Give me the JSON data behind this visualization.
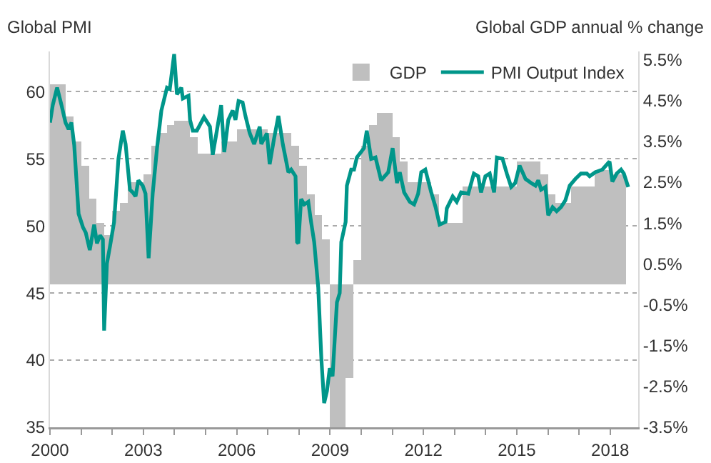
{
  "chart_data": {
    "type": "bar",
    "ylabel": "Global PMI",
    "y2label": "Global GDP annual % change",
    "xlim": [
      2000,
      2018.9
    ],
    "xticks": [
      2000,
      {
        "value": 2001,
        "label": null
      },
      {
        "value": 2002,
        "label": null
      },
      2003,
      {
        "value": 2004,
        "label": null
      },
      {
        "value": 2005,
        "label": null
      },
      2006,
      {
        "value": 2007,
        "label": null
      },
      {
        "value": 2008,
        "label": null
      },
      2009,
      {
        "value": 2010,
        "label": null
      },
      {
        "value": 2011,
        "label": null
      },
      2012,
      {
        "value": 2013,
        "label": null
      },
      {
        "value": 2014,
        "label": null
      },
      2015,
      {
        "value": 2016,
        "label": null
      },
      {
        "value": 2017,
        "label": null
      },
      2018
    ],
    "ylim": [
      35,
      63
    ],
    "yticks": [
      35,
      40,
      45,
      50,
      55,
      60
    ],
    "y2lim": [
      -3.5,
      5.7
    ],
    "y2ticks": [
      {
        "value": -3.5,
        "label": "-3.5%"
      },
      {
        "value": -2.5,
        "label": "-2.5%"
      },
      {
        "value": -1.5,
        "label": "-1.5%"
      },
      {
        "value": -0.5,
        "label": "-0.5%"
      },
      {
        "value": 0.5,
        "label": "0.5%"
      },
      {
        "value": 1.5,
        "label": "1.5%"
      },
      {
        "value": 2.5,
        "label": "2.5%"
      },
      {
        "value": 3.5,
        "label": "3.5%"
      },
      {
        "value": 4.5,
        "label": "4.5%"
      },
      {
        "value": 5.5,
        "label": "5.5%"
      }
    ],
    "grid": "y",
    "legend": "top right",
    "series": [
      {
        "name": "GDP",
        "axis": "y2",
        "color": "#bfbfbf",
        "x": [
          2000.125,
          2000.375,
          2000.625,
          2000.875,
          2001.125,
          2001.375,
          2001.625,
          2001.875,
          2002.125,
          2002.375,
          2002.625,
          2002.875,
          2003.125,
          2003.375,
          2003.625,
          2003.875,
          2004.125,
          2004.375,
          2004.625,
          2004.875,
          2005.125,
          2005.375,
          2005.625,
          2005.875,
          2006.125,
          2006.375,
          2006.625,
          2006.875,
          2007.125,
          2007.375,
          2007.625,
          2007.875,
          2008.125,
          2008.375,
          2008.625,
          2008.875,
          2009.125,
          2009.375,
          2009.625,
          2009.875,
          2010.125,
          2010.375,
          2010.625,
          2010.875,
          2011.125,
          2011.375,
          2011.625,
          2011.875,
          2012.125,
          2012.375,
          2012.625,
          2012.875,
          2013.125,
          2013.375,
          2013.625,
          2013.875,
          2014.125,
          2014.375,
          2014.625,
          2014.875,
          2015.125,
          2015.375,
          2015.625,
          2015.875,
          2016.125,
          2016.375,
          2016.625,
          2016.875,
          2017.125,
          2017.375,
          2017.625,
          2017.875,
          2018.125,
          2018.375
        ],
        "values": [
          4.9,
          4.9,
          4.1,
          3.5,
          2.9,
          2.1,
          1.5,
          1.2,
          1.8,
          2.0,
          2.5,
          2.5,
          2.7,
          3.4,
          3.7,
          3.9,
          4.0,
          4.0,
          3.6,
          3.2,
          3.2,
          3.2,
          3.5,
          3.5,
          3.8,
          3.8,
          3.8,
          3.8,
          3.7,
          3.7,
          3.7,
          3.4,
          2.9,
          2.2,
          1.7,
          1.1,
          -3.5,
          -3.5,
          -2.3,
          0.6,
          3.4,
          3.9,
          4.2,
          4.2,
          3.6,
          3.0,
          2.5,
          2.5,
          2.5,
          2.2,
          1.5,
          1.5,
          1.5,
          2.4,
          2.4,
          2.4,
          2.4,
          2.4,
          2.4,
          2.4,
          3.0,
          3.0,
          3.0,
          2.7,
          2.2,
          2.0,
          2.0,
          2.4,
          2.4,
          2.4,
          2.8,
          2.8,
          2.7,
          2.7
        ]
      },
      {
        "name": "PMI Output Index",
        "type": "line",
        "color": "#00968a",
        "marker": "none",
        "line_style": "solid",
        "x": [
          2000.0,
          2000.09,
          2000.23,
          2000.37,
          2000.5,
          2000.6,
          2000.69,
          2000.78,
          2000.92,
          2001.06,
          2001.15,
          2001.28,
          2001.42,
          2001.51,
          2001.61,
          2001.7,
          2001.74,
          2001.83,
          2001.93,
          2002.06,
          2002.2,
          2002.34,
          2002.43,
          2002.57,
          2002.66,
          2002.75,
          2002.84,
          2002.98,
          2003.07,
          2003.17,
          2003.3,
          2003.44,
          2003.58,
          2003.76,
          2003.85,
          2003.99,
          2004.08,
          2004.22,
          2004.27,
          2004.45,
          2004.5,
          2004.59,
          2004.72,
          2004.95,
          2005.14,
          2005.23,
          2005.37,
          2005.5,
          2005.6,
          2005.73,
          2005.87,
          2005.96,
          2006.06,
          2006.19,
          2006.28,
          2006.42,
          2006.56,
          2006.74,
          2006.79,
          2006.97,
          2007.06,
          2007.2,
          2007.34,
          2007.48,
          2007.66,
          2007.75,
          2007.89,
          2007.94,
          2007.98,
          2008.07,
          2008.17,
          2008.3,
          2008.39,
          2008.49,
          2008.62,
          2008.72,
          2008.81,
          2008.9,
          2008.99,
          2009.08,
          2009.22,
          2009.31,
          2009.36,
          2009.5,
          2009.54,
          2009.68,
          2009.77,
          2009.86,
          2010.09,
          2010.18,
          2010.32,
          2010.46,
          2010.64,
          2010.87,
          2011.01,
          2011.15,
          2011.24,
          2011.38,
          2011.56,
          2011.7,
          2011.83,
          2011.93,
          2012.06,
          2012.25,
          2012.39,
          2012.52,
          2012.71,
          2012.75,
          2012.94,
          2013.07,
          2013.21,
          2013.44,
          2013.62,
          2013.76,
          2013.85,
          2013.99,
          2014.13,
          2014.27,
          2014.36,
          2014.54,
          2014.68,
          2014.82,
          2014.95,
          2015.09,
          2015.28,
          2015.46,
          2015.6,
          2015.69,
          2015.78,
          2015.92,
          2016.01,
          2016.15,
          2016.28,
          2016.42,
          2016.56,
          2016.7,
          2016.88,
          2017.06,
          2017.25,
          2017.34,
          2017.52,
          2017.75,
          2017.98,
          2018.07,
          2018.21,
          2018.35,
          2018.44,
          2018.58
        ],
        "values": [
          57.7,
          59.0,
          60.3,
          59.0,
          57.7,
          57.2,
          57.7,
          56.0,
          50.9,
          49.9,
          49.5,
          48.2,
          50.1,
          48.7,
          49.3,
          49.0,
          42.2,
          47.2,
          48.5,
          50.3,
          55.0,
          57.1,
          56.1,
          52.7,
          52.5,
          52.2,
          53.4,
          53.0,
          52.4,
          47.6,
          52.4,
          55.8,
          58.6,
          60.3,
          60.2,
          62.8,
          59.8,
          60.3,
          59.5,
          59.7,
          57.9,
          57.1,
          57.1,
          58.1,
          57.4,
          55.3,
          57.2,
          59.0,
          55.5,
          57.9,
          58.6,
          57.9,
          59.3,
          59.2,
          58.2,
          56.9,
          56.1,
          57.4,
          56.1,
          56.9,
          54.6,
          56.5,
          58.2,
          56.1,
          54.0,
          54.2,
          53.7,
          48.8,
          48.7,
          52.0,
          51.6,
          51.8,
          50.3,
          48.8,
          45.4,
          40.1,
          36.8,
          37.7,
          39.4,
          38.8,
          44.3,
          45.0,
          48.8,
          50.3,
          53.0,
          54.2,
          54.2,
          55.1,
          55.8,
          57.1,
          55.0,
          55.1,
          53.4,
          54.0,
          55.8,
          53.2,
          54.0,
          52.5,
          51.8,
          51.6,
          52.4,
          54.0,
          54.2,
          52.5,
          51.4,
          50.1,
          50.3,
          51.3,
          52.2,
          51.8,
          52.5,
          52.4,
          53.9,
          53.7,
          52.5,
          53.7,
          53.9,
          52.5,
          55.1,
          55.0,
          53.9,
          52.9,
          53.2,
          54.5,
          53.5,
          53.2,
          53.0,
          53.4,
          52.7,
          52.9,
          50.8,
          51.4,
          51.1,
          51.4,
          51.9,
          53.0,
          53.5,
          53.9,
          53.9,
          53.7,
          54.0,
          54.2,
          54.8,
          53.3,
          53.9,
          54.2,
          53.9,
          52.9
        ]
      }
    ]
  }
}
